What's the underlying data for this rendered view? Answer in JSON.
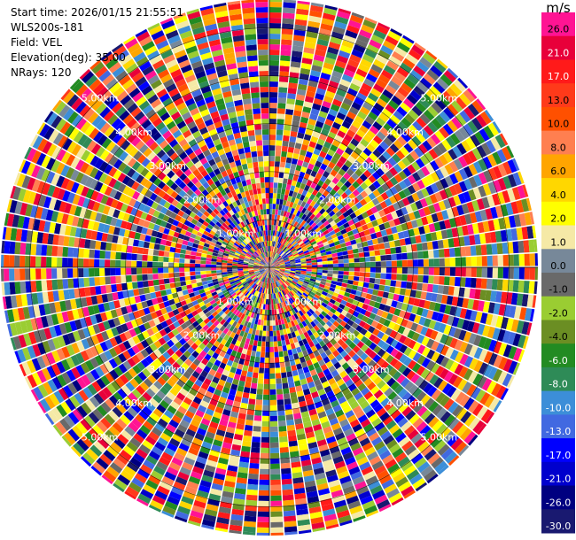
{
  "header": {
    "start_time": "Start time: 2026/01/15 21:55:51",
    "instrument": "WLS200s-181",
    "field": "Field: VEL",
    "elevation": "Elevation(deg): 35.00",
    "nrays": "NRays: 120"
  },
  "chart_data": {
    "type": "heatmap",
    "projection": "polar-ppi",
    "field": "VEL",
    "units": "m/s",
    "elevation_deg": 35.0,
    "n_rays": 120,
    "range_rings_km": [
      1,
      2,
      3,
      4,
      5
    ],
    "ring_labels": [
      "1.00km",
      "2.00km",
      "3.00km",
      "4.00km",
      "5.00km"
    ],
    "value_range": [
      -30,
      30
    ],
    "colorbar": {
      "title": "m/s",
      "bins": [
        {
          "label": "26.0",
          "color": "#ff1493"
        },
        {
          "label": "21.0",
          "color": "#e8003a"
        },
        {
          "label": "17.0",
          "color": "#ff1a1a"
        },
        {
          "label": "13.0",
          "color": "#ff3a1a"
        },
        {
          "label": "10.0",
          "color": "#ff5000"
        },
        {
          "label": "8.0",
          "color": "#ff7f50"
        },
        {
          "label": "6.0",
          "color": "#ffa500"
        },
        {
          "label": "4.0",
          "color": "#ffd700"
        },
        {
          "label": "2.0",
          "color": "#ffff00"
        },
        {
          "label": "1.0",
          "color": "#f5e9a6"
        },
        {
          "label": "0.0",
          "color": "#778899"
        },
        {
          "label": "-1.0",
          "color": "#696969"
        },
        {
          "label": "-2.0",
          "color": "#9acd32"
        },
        {
          "label": "-4.0",
          "color": "#6b8e23"
        },
        {
          "label": "-6.0",
          "color": "#228b22"
        },
        {
          "label": "-8.0",
          "color": "#2e8b57"
        },
        {
          "label": "-10.0",
          "color": "#3c8ed8"
        },
        {
          "label": "-13.0",
          "color": "#4169e1"
        },
        {
          "label": "-17.0",
          "color": "#0000ff"
        },
        {
          "label": "-21.0",
          "color": "#0000cd"
        },
        {
          "label": "-26.0",
          "color": "#000080"
        },
        {
          "label": "-30.0",
          "color": "#191970"
        }
      ]
    }
  }
}
